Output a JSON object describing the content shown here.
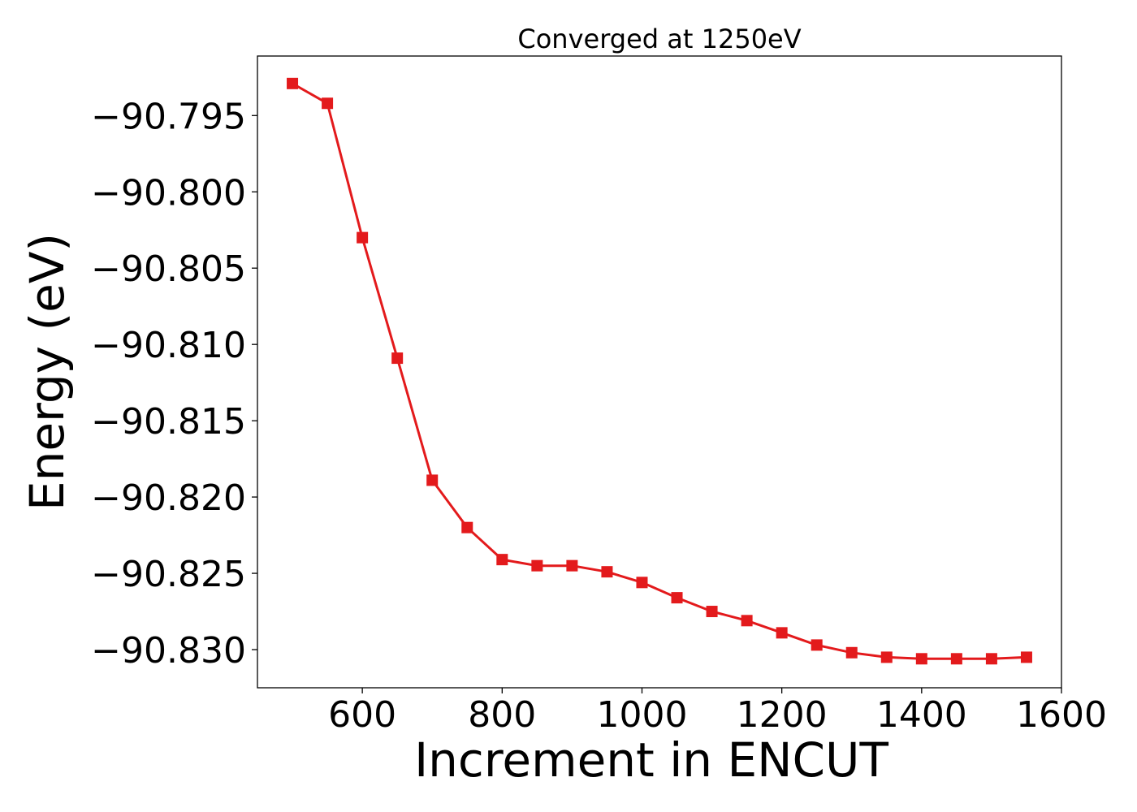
{
  "chart_data": {
    "type": "line",
    "title": "Converged at 1250eV",
    "xlabel": "Increment in ENCUT",
    "ylabel": "Energy (eV)",
    "xlim": [
      450,
      1600
    ],
    "ylim": [
      -90.8325,
      -90.7911
    ],
    "xticks": [
      600,
      800,
      1000,
      1200,
      1400,
      1600
    ],
    "xtick_labels": [
      "600",
      "800",
      "1000",
      "1200",
      "1400",
      "1600"
    ],
    "yticks": [
      -90.83,
      -90.825,
      -90.82,
      -90.815,
      -90.81,
      -90.805,
      -90.8,
      -90.795
    ],
    "ytick_labels": [
      "−90.830",
      "−90.825",
      "−90.820",
      "−90.815",
      "−90.810",
      "−90.805",
      "−90.800",
      "−90.795"
    ],
    "grid": false,
    "legend": "none",
    "series": [
      {
        "color": "#e31a1c",
        "marker": "square",
        "x": [
          500,
          550,
          600,
          650,
          700,
          750,
          800,
          850,
          900,
          950,
          1000,
          1050,
          1100,
          1150,
          1200,
          1250,
          1300,
          1350,
          1400,
          1450,
          1500,
          1550
        ],
        "y": [
          -90.7929,
          -90.7942,
          -90.803,
          -90.8109,
          -90.8189,
          -90.822,
          -90.8241,
          -90.8245,
          -90.8245,
          -90.8249,
          -90.8256,
          -90.8266,
          -90.8275,
          -90.8281,
          -90.8289,
          -90.8297,
          -90.8302,
          -90.8305,
          -90.8306,
          -90.8306,
          -90.8306,
          -90.8305
        ]
      }
    ]
  }
}
